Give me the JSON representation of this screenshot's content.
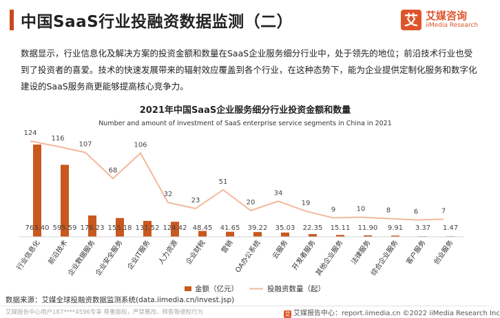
{
  "header": {
    "title": "中国SaaS行业投融资数据监测（二）",
    "logo_mark": "艾",
    "logo_cn": "艾媒咨询",
    "logo_en": "iiMedia Research"
  },
  "intro": "数据显示，行业信息化及解决方案的投资金额和数量在SaaS企业服务细分行业中，处于领先的地位；前沿技术行业也受到了投资者的喜爱。技术的快速发展带来的辐射效应覆盖到各个行业，在这种态势下，能为企业提供定制化服务和数字化建设的SaaS服务商更能够提高核心竞争力。",
  "colors": {
    "bar": "#c8581e",
    "line": "#f2b89a",
    "accent": "#c8491f"
  },
  "chart_data": {
    "type": "bar",
    "title": "2021年中国SaaS企业服务细分行业投资金额和数量",
    "subtitle": "Number and amount of investment of SaaS enterprise service segments in China in 2021",
    "categories": [
      "行业信息化",
      "前沿技术",
      "企业数据服务",
      "企业安全服务",
      "企业IT服务",
      "人力资源",
      "企业财税",
      "营销",
      "OA办公系统",
      "云服务",
      "开发者服务",
      "其他企业服务",
      "法律服务",
      "综合企业服务",
      "客户服务",
      "创业服务"
    ],
    "series": [
      {
        "name": "金额（亿元）",
        "type": "bar",
        "values": [
          763.4,
          595.59,
          176.23,
          155.18,
          131.52,
          124.42,
          48.45,
          41.65,
          39.22,
          35.03,
          22.35,
          15.11,
          11.9,
          9.91,
          3.37,
          1.47
        ],
        "labels": [
          "763.40",
          "595.59",
          "176.23",
          "155.18",
          "131.52",
          "124.42",
          "48.45",
          "41.65",
          "39.22",
          "35.03",
          "22.35",
          "15.11",
          "11.90",
          "9.91",
          "3.37",
          "1.47"
        ]
      },
      {
        "name": "投融资数量（起）",
        "type": "line",
        "values": [
          124,
          116,
          107,
          68,
          106,
          32,
          23,
          51,
          20,
          34,
          19,
          9,
          10,
          8,
          6,
          7
        ]
      }
    ],
    "legend_position": "bottom",
    "grid": false
  },
  "source": "数据来源：艾媒全球投融资数据监测系统(data.iimedia.cn/invest.jsp)",
  "footer": {
    "left": "艾媒报告中心用户187****4596专享 尊重版权，严禁篡改、转售等侵权行为",
    "right": "艾媒报告中心：report.iimedia.cn  ©2022 iiMedia Research Inc",
    "icon": "艾"
  }
}
